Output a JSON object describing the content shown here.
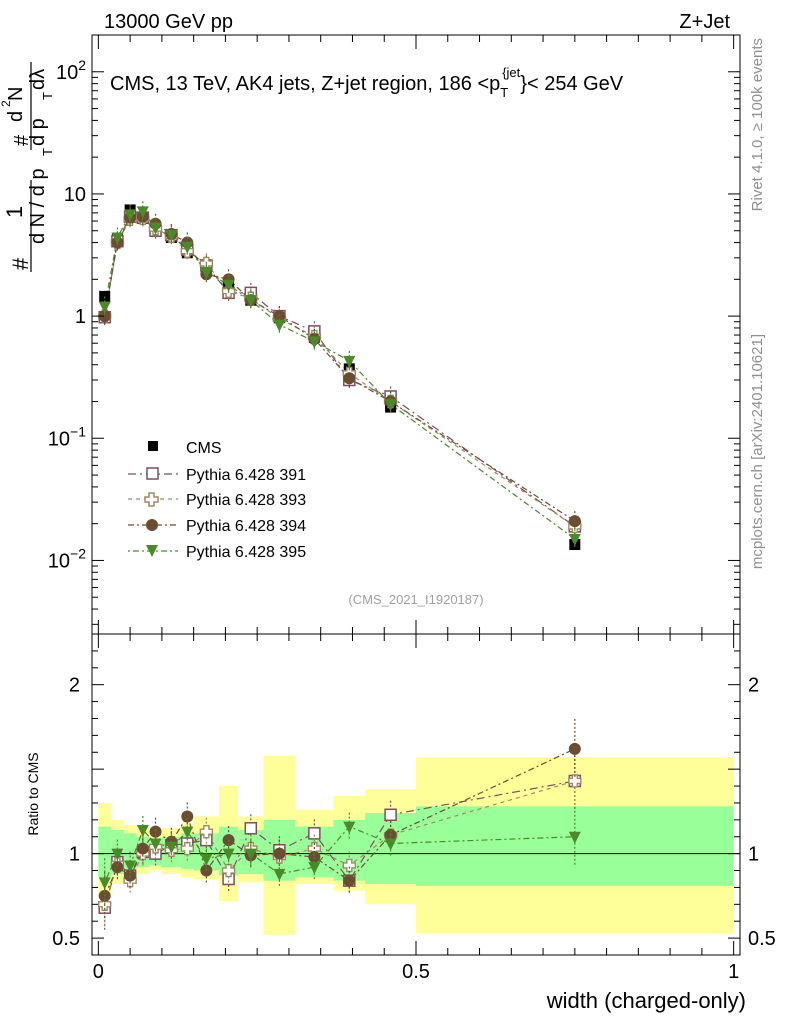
{
  "header": {
    "left": "13000 GeV pp",
    "right": "Z+Jet",
    "title_main": "CMS, 13 TeV, AK4 jets, Z+jet region, 186 <p",
    "title_sub": "T",
    "title_sup": "{jet",
    "title_tail": "}< 254 GeV",
    "analysis_id": "(CMS_2021_I1920187)",
    "side_top": "Rivet 4.1.0, ≥ 100k events",
    "side_bottom": "mcplots.cern.ch [arXiv:2401.10621]"
  },
  "y_axis": {
    "main_symbols": [
      "#",
      "1",
      "d N / d p",
      "T",
      "#",
      "d",
      "2",
      "N",
      "d p",
      "T",
      "dλ"
    ],
    "ratio_label": "Ratio to CMS",
    "main_ticks": [
      {
        "value": 0.01,
        "base": "10",
        "exp": "−2"
      },
      {
        "value": 0.1,
        "base": "10",
        "exp": "−1"
      },
      {
        "value": 1,
        "base": "1",
        "exp": ""
      },
      {
        "value": 10,
        "base": "10",
        "exp": ""
      },
      {
        "value": 100,
        "base": "10",
        "exp": "2"
      }
    ],
    "ratio_ticks": [
      {
        "value": 0.5,
        "label": "0.5"
      },
      {
        "value": 1,
        "label": "1"
      },
      {
        "value": 2,
        "label": "2"
      }
    ]
  },
  "x_axis": {
    "label": "width (charged-only)",
    "ticks": [
      {
        "value": 0,
        "label": "0"
      },
      {
        "value": 0.5,
        "label": "0.5"
      },
      {
        "value": 1,
        "label": "1"
      }
    ]
  },
  "legend": [
    {
      "label": "CMS"
    },
    {
      "label": "Pythia 6.428 391"
    },
    {
      "label": "Pythia 6.428 393"
    },
    {
      "label": "Pythia 6.428 394"
    },
    {
      "label": "Pythia 6.428 395"
    }
  ],
  "chart_data": {
    "type": "scatter",
    "title": "CMS, 13 TeV, AK4 jets, Z+jet region, 186 < pT{jet} < 254 GeV",
    "xlabel": "width (charged-only)",
    "ylabel": "1/dN/dpT dN2/dpT dlambda",
    "xlim": [
      -0.01,
      1.01
    ],
    "ylim": [
      0.0025,
      200
    ],
    "yscale": "log",
    "ratio_ylim": [
      0.4,
      2.3
    ],
    "x": [
      0.01,
      0.03,
      0.05,
      0.07,
      0.09,
      0.115,
      0.14,
      0.17,
      0.205,
      0.24,
      0.285,
      0.34,
      0.395,
      0.46,
      0.75
    ],
    "x_edges": [
      0,
      0.02,
      0.04,
      0.06,
      0.08,
      0.1,
      0.13,
      0.15,
      0.19,
      0.22,
      0.26,
      0.31,
      0.37,
      0.42,
      0.5,
      1.0
    ],
    "band_inner": [
      [
        0.86,
        1.16
      ],
      [
        0.88,
        1.14
      ],
      [
        0.9,
        1.12
      ],
      [
        0.92,
        1.1
      ],
      [
        0.93,
        1.09
      ],
      [
        0.92,
        1.1
      ],
      [
        0.91,
        1.12
      ],
      [
        0.9,
        1.12
      ],
      [
        0.87,
        1.16
      ],
      [
        0.88,
        1.14
      ],
      [
        0.84,
        1.2
      ],
      [
        0.86,
        1.16
      ],
      [
        0.84,
        1.2
      ],
      [
        0.82,
        1.24
      ],
      [
        0.81,
        1.28
      ]
    ],
    "band_outer": [
      [
        0.75,
        1.3
      ],
      [
        0.82,
        1.2
      ],
      [
        0.86,
        1.17
      ],
      [
        0.88,
        1.15
      ],
      [
        0.9,
        1.13
      ],
      [
        0.88,
        1.15
      ],
      [
        0.86,
        1.18
      ],
      [
        0.85,
        1.22
      ],
      [
        0.72,
        1.4
      ],
      [
        0.83,
        1.22
      ],
      [
        0.52,
        1.58
      ],
      [
        0.82,
        1.26
      ],
      [
        0.78,
        1.34
      ],
      [
        0.7,
        1.38
      ],
      [
        0.53,
        1.57
      ]
    ],
    "series": [
      {
        "name": "CMS",
        "color": "#000000",
        "marker": "square-filled",
        "values": [
          1.45,
          4.3,
          7.4,
          6.3,
          5.0,
          4.4,
          3.3,
          2.4,
          1.8,
          1.35,
          0.97,
          0.67,
          0.37,
          0.18,
          0.0135
        ]
      },
      {
        "name": "Pythia 6.428 391",
        "color": "#7a4f5e",
        "marker": "square-open",
        "dash": "8,4,2,4",
        "values": [
          0.98,
          4.1,
          6.5,
          6.4,
          5.0,
          4.6,
          3.5,
          2.6,
          1.55,
          1.55,
          1.0,
          0.75,
          0.3,
          0.22,
          0.019
        ]
      },
      {
        "name": "Pythia 6.428 393",
        "color": "#a08860",
        "marker": "cross-open",
        "dash": "4,4",
        "values": [
          1.0,
          4.0,
          6.2,
          6.3,
          5.2,
          4.5,
          3.4,
          2.7,
          1.6,
          1.4,
          0.95,
          0.68,
          0.34,
          0.2,
          0.019
        ]
      },
      {
        "name": "Pythia 6.428 394",
        "color": "#6b4e32",
        "marker": "circle-filled",
        "dash": "6,3,2,3",
        "values": [
          1.0,
          4.0,
          6.4,
          6.5,
          5.7,
          4.7,
          4.0,
          2.2,
          2.0,
          1.35,
          1.0,
          0.65,
          0.31,
          0.2,
          0.021
        ]
      },
      {
        "name": "Pythia 6.428 395",
        "color": "#4a8a28",
        "marker": "triangle-down-filled",
        "dash": "2,3,6,3",
        "values": [
          1.2,
          4.4,
          6.8,
          7.2,
          5.3,
          4.6,
          3.7,
          2.3,
          1.8,
          1.35,
          0.85,
          0.62,
          0.43,
          0.19,
          0.015
        ]
      }
    ],
    "ratio": [
      {
        "name": "Pythia 6.428 391",
        "values": [
          0.68,
          0.95,
          0.87,
          1.01,
          1.0,
          1.05,
          1.06,
          1.08,
          0.85,
          1.15,
          1.02,
          1.12,
          0.84,
          1.23,
          1.43
        ]
      },
      {
        "name": "Pythia 6.428 393",
        "values": [
          0.7,
          0.94,
          0.84,
          1.0,
          1.04,
          1.02,
          1.03,
          1.13,
          0.9,
          1.03,
          0.98,
          1.03,
          0.93,
          1.11,
          1.43
        ]
      },
      {
        "name": "Pythia 6.428 394",
        "values": [
          0.75,
          0.92,
          0.87,
          1.03,
          1.13,
          1.07,
          1.22,
          0.9,
          1.08,
          0.99,
          1.0,
          0.98,
          0.84,
          1.11,
          1.62
        ]
      },
      {
        "name": "Pythia 6.428 395",
        "values": [
          0.83,
          1.0,
          0.93,
          1.14,
          1.06,
          1.04,
          1.13,
          0.97,
          1.0,
          1.0,
          0.88,
          0.92,
          1.16,
          1.06,
          1.1
        ]
      }
    ]
  }
}
